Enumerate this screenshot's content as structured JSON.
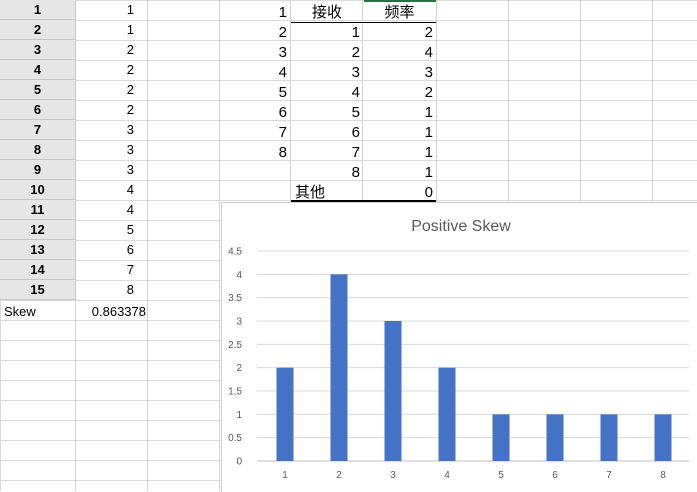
{
  "left_table": {
    "rows": [
      {
        "row": "1",
        "value": "1"
      },
      {
        "row": "2",
        "value": "1"
      },
      {
        "row": "3",
        "value": "2"
      },
      {
        "row": "4",
        "value": "2"
      },
      {
        "row": "5",
        "value": "2"
      },
      {
        "row": "6",
        "value": "2"
      },
      {
        "row": "7",
        "value": "3"
      },
      {
        "row": "8",
        "value": "3"
      },
      {
        "row": "9",
        "value": "3"
      },
      {
        "row": "10",
        "value": "4"
      },
      {
        "row": "11",
        "value": "4"
      },
      {
        "row": "12",
        "value": "5"
      },
      {
        "row": "13",
        "value": "6"
      },
      {
        "row": "14",
        "value": "7"
      },
      {
        "row": "15",
        "value": "8"
      }
    ],
    "skew_label": "Skew",
    "skew_value": "0.863378"
  },
  "bins_column": [
    "1",
    "2",
    "3",
    "4",
    "5",
    "6",
    "7",
    "8"
  ],
  "frequency_table": {
    "header_bin": "接收",
    "header_freq": "频率",
    "rows": [
      {
        "bin": "1",
        "freq": "2"
      },
      {
        "bin": "2",
        "freq": "4"
      },
      {
        "bin": "3",
        "freq": "3"
      },
      {
        "bin": "4",
        "freq": "2"
      },
      {
        "bin": "5",
        "freq": "1"
      },
      {
        "bin": "6",
        "freq": "1"
      },
      {
        "bin": "7",
        "freq": "1"
      },
      {
        "bin": "8",
        "freq": "1"
      }
    ],
    "other_label": "其他",
    "other_freq": "0"
  },
  "colors": {
    "bar": "#4472c4",
    "header_underline": "#217346"
  },
  "chart_data": {
    "type": "bar",
    "title": "Positive Skew",
    "categories": [
      "1",
      "2",
      "3",
      "4",
      "5",
      "6",
      "7",
      "8"
    ],
    "values": [
      2,
      4,
      3,
      2,
      1,
      1,
      1,
      1
    ],
    "ylim": [
      0,
      4.5
    ],
    "yticks": [
      "0",
      "0.5",
      "1",
      "1.5",
      "2",
      "2.5",
      "3",
      "3.5",
      "4",
      "4.5"
    ],
    "grid": true,
    "legend": "none"
  }
}
